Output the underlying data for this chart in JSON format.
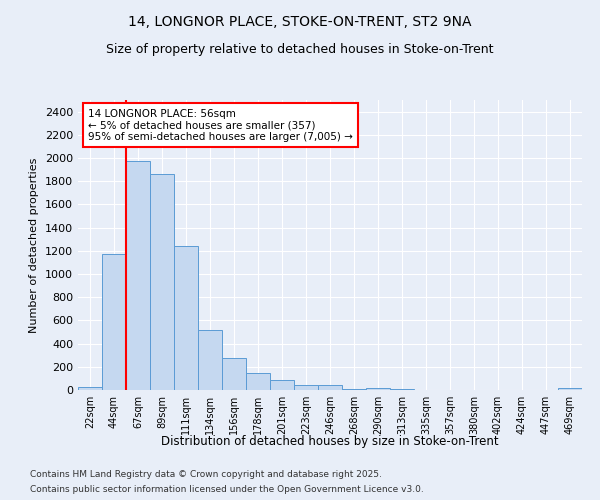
{
  "title1": "14, LONGNOR PLACE, STOKE-ON-TRENT, ST2 9NA",
  "title2": "Size of property relative to detached houses in Stoke-on-Trent",
  "xlabel": "Distribution of detached houses by size in Stoke-on-Trent",
  "ylabel": "Number of detached properties",
  "bar_labels": [
    "22sqm",
    "44sqm",
    "67sqm",
    "89sqm",
    "111sqm",
    "134sqm",
    "156sqm",
    "178sqm",
    "201sqm",
    "223sqm",
    "246sqm",
    "268sqm",
    "290sqm",
    "313sqm",
    "335sqm",
    "357sqm",
    "380sqm",
    "402sqm",
    "424sqm",
    "447sqm",
    "469sqm"
  ],
  "bar_values": [
    25,
    1175,
    1975,
    1860,
    1245,
    515,
    275,
    150,
    90,
    40,
    40,
    5,
    20,
    5,
    2,
    2,
    2,
    2,
    2,
    2,
    15
  ],
  "bar_color": "#c5d8f0",
  "bar_edge_color": "#5b9bd5",
  "vline_color": "red",
  "vline_x": 1.5,
  "annotation_title": "14 LONGNOR PLACE: 56sqm",
  "annotation_line1": "← 5% of detached houses are smaller (357)",
  "annotation_line2": "95% of semi-detached houses are larger (7,005) →",
  "annotation_box_color": "white",
  "annotation_box_edge": "red",
  "ylim": [
    0,
    2500
  ],
  "yticks": [
    0,
    200,
    400,
    600,
    800,
    1000,
    1200,
    1400,
    1600,
    1800,
    2000,
    2200,
    2400
  ],
  "footer1": "Contains HM Land Registry data © Crown copyright and database right 2025.",
  "footer2": "Contains public sector information licensed under the Open Government Licence v3.0.",
  "bg_color": "#e8eef8",
  "grid_color": "white",
  "title_fontsize": 10,
  "subtitle_fontsize": 9
}
